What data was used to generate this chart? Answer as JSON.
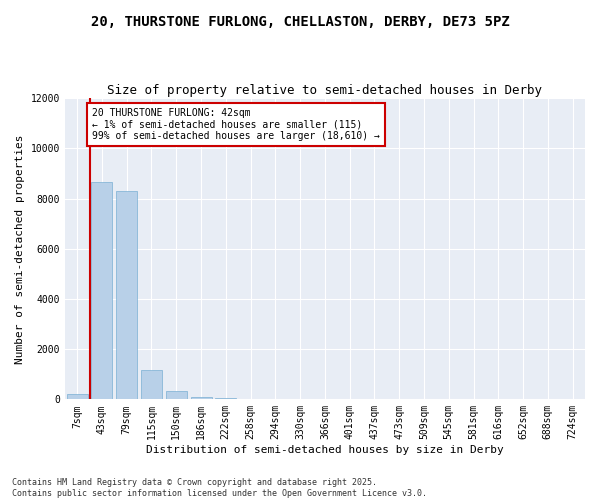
{
  "title": "20, THURSTONE FURLONG, CHELLASTON, DERBY, DE73 5PZ",
  "subtitle": "Size of property relative to semi-detached houses in Derby",
  "xlabel": "Distribution of semi-detached houses by size in Derby",
  "ylabel": "Number of semi-detached properties",
  "bar_color": "#b8d0e8",
  "bar_edge_color": "#7aafd4",
  "bg_color": "#e8edf5",
  "grid_color": "#ffffff",
  "annotation_text": "20 THURSTONE FURLONG: 42sqm\n← 1% of semi-detached houses are smaller (115)\n99% of semi-detached houses are larger (18,610) →",
  "vline_bar_index": 1,
  "vline_color": "#cc0000",
  "ylim": [
    0,
    12000
  ],
  "categories": [
    "7sqm",
    "43sqm",
    "79sqm",
    "115sqm",
    "150sqm",
    "186sqm",
    "222sqm",
    "258sqm",
    "294sqm",
    "330sqm",
    "366sqm",
    "401sqm",
    "437sqm",
    "473sqm",
    "509sqm",
    "545sqm",
    "581sqm",
    "616sqm",
    "652sqm",
    "688sqm",
    "724sqm"
  ],
  "values": [
    200,
    8650,
    8300,
    1150,
    330,
    90,
    50,
    10,
    5,
    2,
    1,
    0,
    0,
    0,
    0,
    0,
    0,
    0,
    0,
    0,
    0
  ],
  "footer": "Contains HM Land Registry data © Crown copyright and database right 2025.\nContains public sector information licensed under the Open Government Licence v3.0.",
  "title_fontsize": 10,
  "subtitle_fontsize": 9,
  "tick_fontsize": 7,
  "ylabel_fontsize": 8,
  "xlabel_fontsize": 8,
  "annotation_fontsize": 7,
  "footer_fontsize": 6
}
